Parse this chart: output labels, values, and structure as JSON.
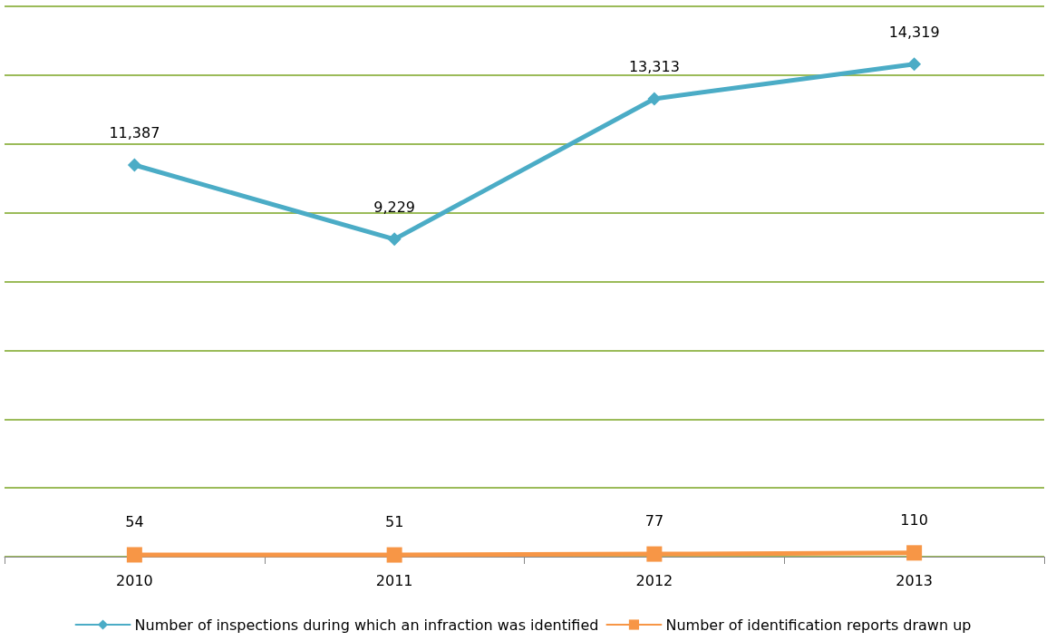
{
  "chart_data": {
    "type": "line",
    "categories": [
      "2010",
      "2011",
      "2012",
      "2013"
    ],
    "series": [
      {
        "name": "Number of inspections during which an infraction was identified",
        "color": "#4bacc6",
        "values": [
          11387,
          9229,
          13313,
          14319
        ],
        "value_labels": [
          "11,387",
          "9,229",
          "13,313",
          "14,319"
        ],
        "marker": "diamond"
      },
      {
        "name": "Number of identification reports drawn up",
        "color": "#f79646",
        "values": [
          54,
          51,
          77,
          110
        ],
        "value_labels": [
          "54",
          "51",
          "77",
          "110"
        ],
        "marker": "square"
      }
    ],
    "ylim": [
      0,
      16000
    ],
    "yticks": [
      {
        "value": 0,
        "label": null
      },
      {
        "value": 2000,
        "label": null
      },
      {
        "value": 4000,
        "label": null
      },
      {
        "value": 6000,
        "label": null
      },
      {
        "value": 8000,
        "label": null
      },
      {
        "value": 10000,
        "label": null
      },
      {
        "value": 12000,
        "label": null
      },
      {
        "value": 14000,
        "label": null
      },
      {
        "value": 16000,
        "label": null
      }
    ],
    "grid": "y",
    "legend": "bottom",
    "tick_labels": "x",
    "line_style": "solid"
  }
}
